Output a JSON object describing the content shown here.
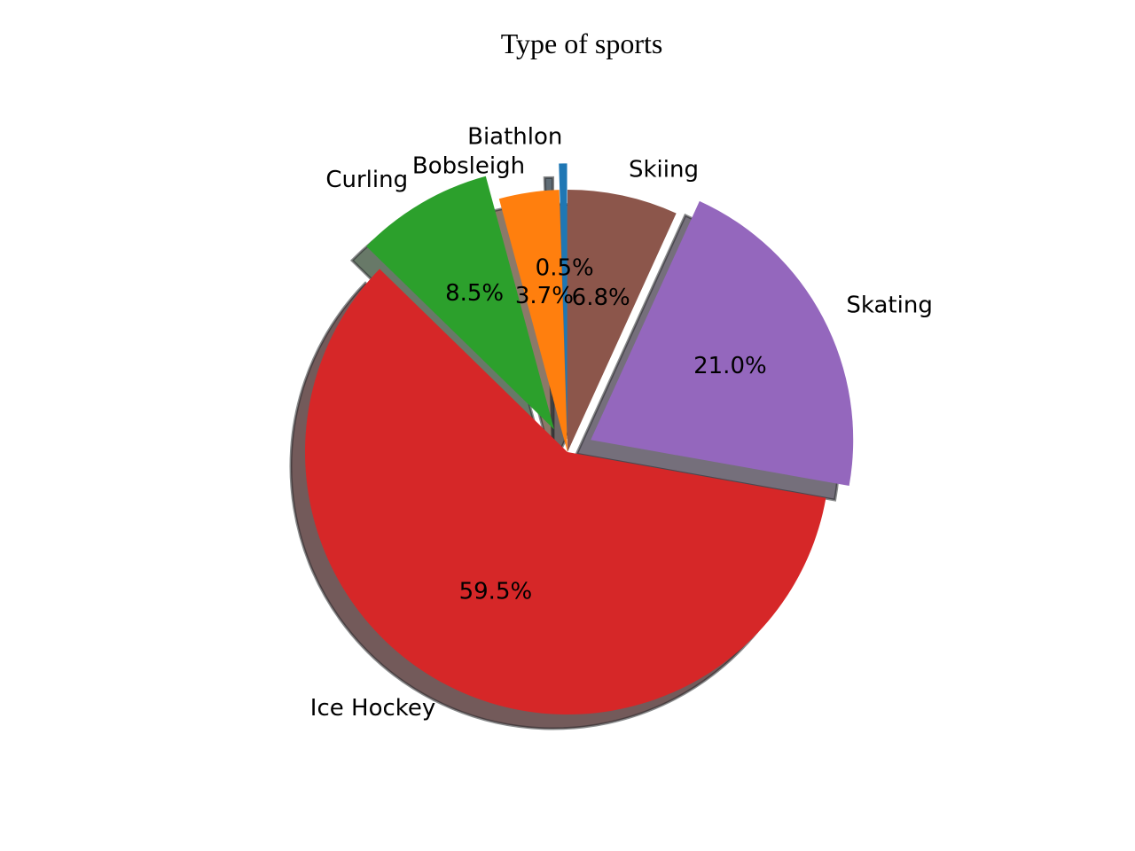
{
  "chart_data": {
    "type": "pie",
    "title": "Type of sports",
    "slices": [
      {
        "label": "Biathlon",
        "value": 0.5,
        "pct_label": "0.5%",
        "color": "#1f77b4",
        "exploded": true
      },
      {
        "label": "Bobsleigh",
        "value": 3.7,
        "pct_label": "3.7%",
        "color": "#ff7f0e",
        "exploded": false
      },
      {
        "label": "Curling",
        "value": 8.5,
        "pct_label": "8.5%",
        "color": "#2ca02c",
        "exploded": true
      },
      {
        "label": "Ice Hockey",
        "value": 59.5,
        "pct_label": "59.5%",
        "color": "#d62728",
        "exploded": false
      },
      {
        "label": "Skating",
        "value": 21.0,
        "pct_label": "21.0%",
        "color": "#9467bd",
        "exploded": true
      },
      {
        "label": "Skiing",
        "value": 6.8,
        "pct_label": "6.8%",
        "color": "#8c564b",
        "exploded": false
      }
    ],
    "start_angle_deg": 90,
    "direction": "counterclockwise",
    "shadow": true,
    "legend": false
  }
}
